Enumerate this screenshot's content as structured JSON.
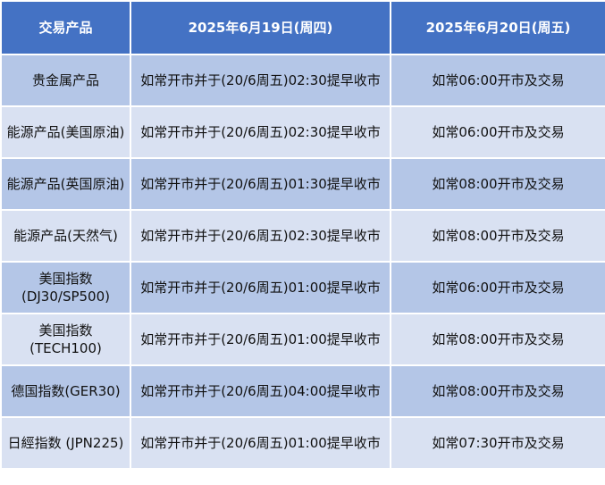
{
  "colors": {
    "header": "#4472C4",
    "row_odd": "#B4C6E7",
    "row_even": "#D9E1F2"
  },
  "headers": [
    "交易产品",
    "2025年6月19日(周四)",
    "2025年6月20日(周五)"
  ],
  "rows": [
    [
      "贵金属产品",
      "如常开市并于(20/6周五)02:30提早收市",
      "如常06:00开市及交易"
    ],
    [
      "能源产品(美国原油)",
      "如常开市并于(20/6周五)02:30提早收市",
      "如常06:00开市及交易"
    ],
    [
      "能源产品(英国原油)",
      "如常开市并于(20/6周五)01:30提早收市",
      "如常08:00开市及交易"
    ],
    [
      "能源产品(天然气)",
      "如常开市并于(20/6周五)02:30提早收市",
      "如常08:00开市及交易"
    ],
    [
      "美国指数(DJ30/SP500)",
      "如常开市并于(20/6周五)01:00提早收市",
      "如常06:00开市及交易"
    ],
    [
      "美国指数(TECH100)",
      "如常开市并于(20/6周五)01:00提早收市",
      "如常08:00开市及交易"
    ],
    [
      "德国指数(GER30)",
      "如常开市并于(20/6周五)04:00提早收市",
      "如常08:00开市及交易"
    ],
    [
      "日經指数 (JPN225)",
      "如常开市并于(20/6周五)01:00提早收市",
      "如常07:30开市及交易"
    ]
  ]
}
